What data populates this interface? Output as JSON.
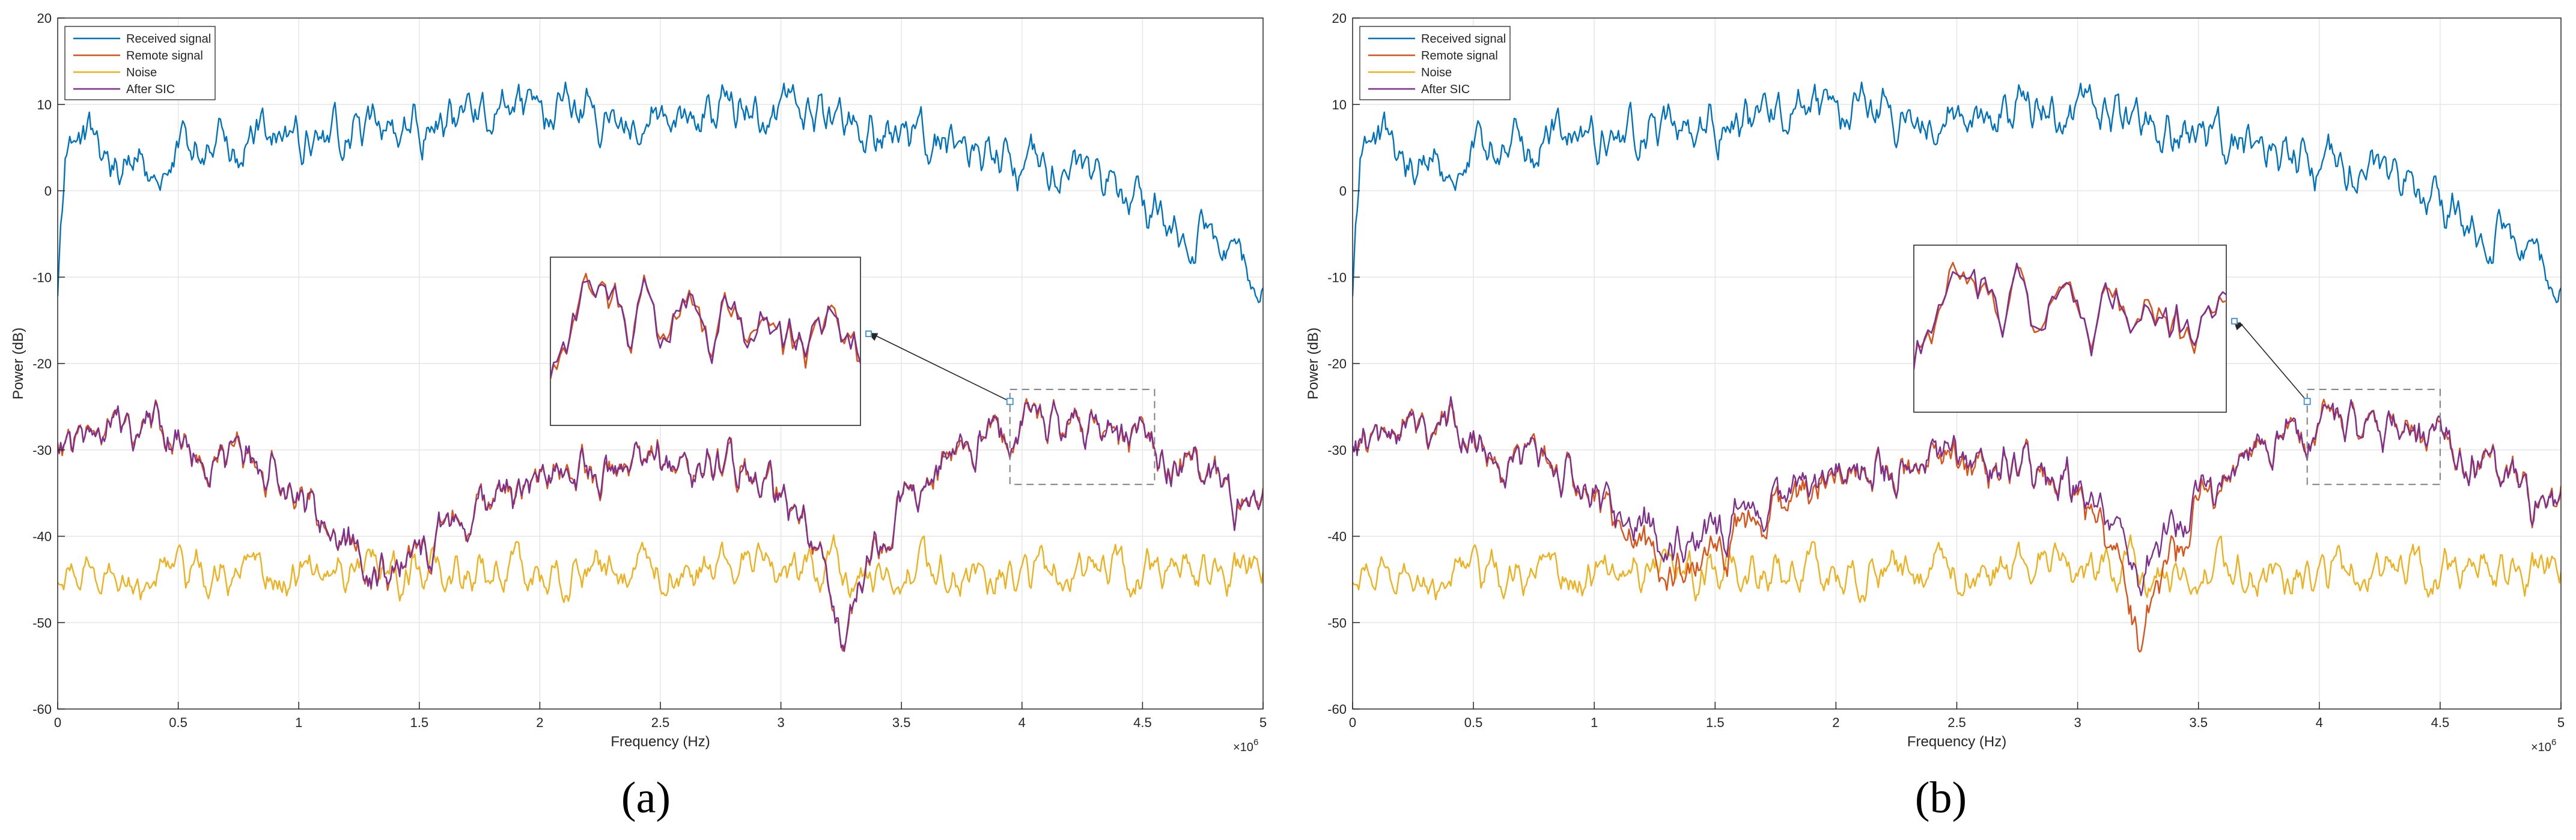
{
  "figure": {
    "panel_labels": [
      "(a)",
      "(b)"
    ]
  },
  "chart_data": [
    {
      "type": "line",
      "panel": "(a)",
      "title": "",
      "xlabel": "Frequency (Hz)",
      "ylabel": "Power (dB)",
      "x_multiplier_label": "×10",
      "x_multiplier_exponent": "6",
      "xlim": [
        0,
        5
      ],
      "ylim": [
        -60,
        20
      ],
      "xticks": [
        "0",
        "0.5",
        "1",
        "1.5",
        "2",
        "2.5",
        "3",
        "3.5",
        "4",
        "4.5",
        "5"
      ],
      "yticks": [
        "-60",
        "-50",
        "-40",
        "-30",
        "-20",
        "-10",
        "0",
        "10",
        "20"
      ],
      "grid": true,
      "legend_position": "top-left",
      "series": [
        {
          "name": "Received signal",
          "color": "#0072BD",
          "anchors": [
            [
              0,
              -13
            ],
            [
              0.03,
              3
            ],
            [
              0.1,
              6
            ],
            [
              0.3,
              3
            ],
            [
              0.5,
              5
            ],
            [
              0.7,
              5
            ],
            [
              1,
              6
            ],
            [
              1.3,
              7
            ],
            [
              1.6,
              8
            ],
            [
              1.9,
              9
            ],
            [
              2.1,
              9
            ],
            [
              2.3,
              8
            ],
            [
              2.5,
              9
            ],
            [
              2.8,
              10
            ],
            [
              3.0,
              9
            ],
            [
              3.2,
              8
            ],
            [
              3.4,
              7
            ],
            [
              3.6,
              6
            ],
            [
              3.8,
              5
            ],
            [
              4.0,
              3
            ],
            [
              4.2,
              2
            ],
            [
              4.4,
              0
            ],
            [
              4.6,
              -3
            ],
            [
              4.8,
              -6
            ],
            [
              5.0,
              -10
            ]
          ],
          "noise": 3.2
        },
        {
          "name": "Remote signal",
          "color": "#D95319",
          "anchors": [
            [
              0,
              -29
            ],
            [
              0.2,
              -28
            ],
            [
              0.4,
              -27
            ],
            [
              0.6,
              -31
            ],
            [
              0.8,
              -32
            ],
            [
              0.95,
              -34
            ],
            [
              1.1,
              -38
            ],
            [
              1.3,
              -44
            ],
            [
              1.45,
              -43
            ],
            [
              1.55,
              -41
            ],
            [
              1.7,
              -38
            ],
            [
              1.9,
              -35
            ],
            [
              2.1,
              -33
            ],
            [
              2.3,
              -32
            ],
            [
              2.5,
              -32
            ],
            [
              2.7,
              -32
            ],
            [
              2.85,
              -33
            ],
            [
              2.95,
              -34
            ],
            [
              3.05,
              -36
            ],
            [
              3.15,
              -42
            ],
            [
              3.25,
              -52
            ],
            [
              3.35,
              -45
            ],
            [
              3.5,
              -36
            ],
            [
              3.7,
              -31
            ],
            [
              3.9,
              -29
            ],
            [
              4.1,
              -27
            ],
            [
              4.3,
              -28
            ],
            [
              4.5,
              -30
            ],
            [
              4.7,
              -32
            ],
            [
              4.9,
              -36
            ],
            [
              5.0,
              -38
            ]
          ],
          "noise": 2.6
        },
        {
          "name": "Noise",
          "color": "#EDB120",
          "anchors": [
            [
              0,
              -45
            ],
            [
              1,
              -44
            ],
            [
              2,
              -44
            ],
            [
              3,
              -44
            ],
            [
              4,
              -44
            ],
            [
              5,
              -44
            ]
          ],
          "noise": 2.8
        },
        {
          "name": "After SIC",
          "color": "#7E2F8E",
          "anchors": [
            [
              0,
              -29
            ],
            [
              0.2,
              -28
            ],
            [
              0.4,
              -27
            ],
            [
              0.6,
              -31
            ],
            [
              0.8,
              -32
            ],
            [
              0.95,
              -34
            ],
            [
              1.1,
              -38
            ],
            [
              1.3,
              -44
            ],
            [
              1.45,
              -43
            ],
            [
              1.55,
              -41
            ],
            [
              1.7,
              -38
            ],
            [
              1.9,
              -35
            ],
            [
              2.1,
              -33
            ],
            [
              2.3,
              -32
            ],
            [
              2.5,
              -32
            ],
            [
              2.7,
              -32
            ],
            [
              2.85,
              -33
            ],
            [
              2.95,
              -34
            ],
            [
              3.05,
              -36
            ],
            [
              3.15,
              -42
            ],
            [
              3.25,
              -52
            ],
            [
              3.35,
              -45
            ],
            [
              3.5,
              -36
            ],
            [
              3.7,
              -31
            ],
            [
              3.9,
              -29
            ],
            [
              4.1,
              -27
            ],
            [
              4.3,
              -28
            ],
            [
              4.5,
              -30
            ],
            [
              4.7,
              -32
            ],
            [
              4.9,
              -36
            ],
            [
              5.0,
              -38
            ]
          ],
          "noise": 2.6
        }
      ],
      "zoom_region": {
        "xlim": [
          3.95,
          4.55
        ],
        "ylim": [
          -34,
          -23
        ]
      }
    },
    {
      "type": "line",
      "panel": "(b)",
      "title": "",
      "xlabel": "Frequency (Hz)",
      "ylabel": "Power (dB)",
      "x_multiplier_label": "×10",
      "x_multiplier_exponent": "6",
      "xlim": [
        0,
        5
      ],
      "ylim": [
        -60,
        20
      ],
      "xticks": [
        "0",
        "0.5",
        "1",
        "1.5",
        "2",
        "2.5",
        "3",
        "3.5",
        "4",
        "4.5",
        "5"
      ],
      "yticks": [
        "-60",
        "-50",
        "-40",
        "-30",
        "-20",
        "-10",
        "0",
        "10",
        "20"
      ],
      "grid": true,
      "legend_position": "top-left",
      "series": [
        {
          "name": "Received signal",
          "color": "#0072BD",
          "anchors": [
            [
              0,
              -13
            ],
            [
              0.03,
              3
            ],
            [
              0.1,
              6
            ],
            [
              0.3,
              3
            ],
            [
              0.5,
              5
            ],
            [
              0.7,
              5
            ],
            [
              1,
              6
            ],
            [
              1.3,
              7
            ],
            [
              1.6,
              8
            ],
            [
              1.9,
              9
            ],
            [
              2.1,
              9
            ],
            [
              2.3,
              8
            ],
            [
              2.5,
              9
            ],
            [
              2.8,
              10
            ],
            [
              3.0,
              9
            ],
            [
              3.2,
              8
            ],
            [
              3.4,
              7
            ],
            [
              3.6,
              6
            ],
            [
              3.8,
              5
            ],
            [
              4.0,
              3
            ],
            [
              4.2,
              2
            ],
            [
              4.4,
              0
            ],
            [
              4.6,
              -3
            ],
            [
              4.8,
              -6
            ],
            [
              5.0,
              -10
            ]
          ],
          "noise": 3.2
        },
        {
          "name": "Remote signal",
          "color": "#D95319",
          "anchors": [
            [
              0,
              -29
            ],
            [
              0.2,
              -28
            ],
            [
              0.4,
              -27
            ],
            [
              0.6,
              -31
            ],
            [
              0.8,
              -32
            ],
            [
              0.95,
              -34
            ],
            [
              1.1,
              -38
            ],
            [
              1.3,
              -44
            ],
            [
              1.45,
              -43
            ],
            [
              1.55,
              -41
            ],
            [
              1.7,
              -38
            ],
            [
              1.9,
              -35
            ],
            [
              2.1,
              -33
            ],
            [
              2.3,
              -32
            ],
            [
              2.5,
              -32
            ],
            [
              2.7,
              -32
            ],
            [
              2.85,
              -33
            ],
            [
              2.95,
              -34
            ],
            [
              3.05,
              -36
            ],
            [
              3.15,
              -42
            ],
            [
              3.25,
              -52
            ],
            [
              3.35,
              -45
            ],
            [
              3.5,
              -36
            ],
            [
              3.7,
              -31
            ],
            [
              3.9,
              -29
            ],
            [
              4.1,
              -27
            ],
            [
              4.3,
              -28
            ],
            [
              4.5,
              -30
            ],
            [
              4.7,
              -32
            ],
            [
              4.9,
              -36
            ],
            [
              5.0,
              -38
            ]
          ],
          "noise": 2.6
        },
        {
          "name": "Noise",
          "color": "#EDB120",
          "anchors": [
            [
              0,
              -45
            ],
            [
              1,
              -44
            ],
            [
              2,
              -44
            ],
            [
              3,
              -44
            ],
            [
              4,
              -44
            ],
            [
              5,
              -44
            ]
          ],
          "noise": 2.8
        },
        {
          "name": "After SIC",
          "color": "#7E2F8E",
          "anchors": [
            [
              0,
              -29
            ],
            [
              0.2,
              -28
            ],
            [
              0.4,
              -27
            ],
            [
              0.6,
              -31
            ],
            [
              0.8,
              -32
            ],
            [
              0.95,
              -34
            ],
            [
              1.1,
              -37
            ],
            [
              1.3,
              -41
            ],
            [
              1.45,
              -40
            ],
            [
              1.55,
              -39
            ],
            [
              1.7,
              -37
            ],
            [
              1.9,
              -34
            ],
            [
              2.1,
              -33
            ],
            [
              2.3,
              -32
            ],
            [
              2.5,
              -31
            ],
            [
              2.7,
              -32
            ],
            [
              2.85,
              -33
            ],
            [
              2.95,
              -34
            ],
            [
              3.05,
              -35
            ],
            [
              3.15,
              -39
            ],
            [
              3.25,
              -45
            ],
            [
              3.35,
              -41
            ],
            [
              3.5,
              -35
            ],
            [
              3.7,
              -31
            ],
            [
              3.9,
              -29
            ],
            [
              4.1,
              -27
            ],
            [
              4.3,
              -28
            ],
            [
              4.5,
              -30
            ],
            [
              4.7,
              -32
            ],
            [
              4.9,
              -36
            ],
            [
              5.0,
              -38
            ]
          ],
          "noise": 2.6
        }
      ],
      "zoom_region": {
        "xlim": [
          3.95,
          4.5
        ],
        "ylim": [
          -34,
          -23
        ]
      }
    }
  ]
}
